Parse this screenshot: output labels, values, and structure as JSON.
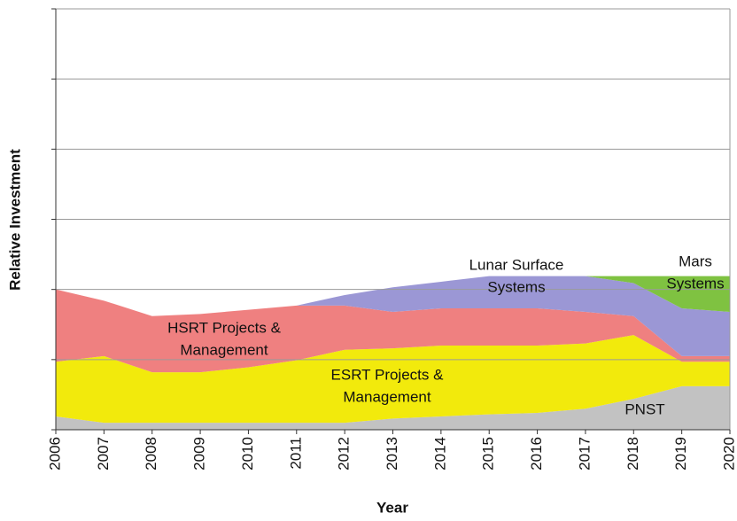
{
  "chart_data": {
    "type": "stacked_area",
    "x_label": "Year",
    "y_label": "Relative Investment",
    "x": [
      2006,
      2007,
      2008,
      2009,
      2010,
      2011,
      2012,
      2013,
      2014,
      2015,
      2016,
      2017,
      2018,
      2019,
      2020
    ],
    "xlim": [
      2006,
      2020
    ],
    "ylim": [
      0,
      6
    ],
    "yticks": [
      0,
      1,
      2,
      3,
      4,
      5,
      6
    ],
    "grid": true,
    "series": [
      {
        "name": "PNST",
        "color": "#c2c2c2",
        "values": [
          0.19,
          0.1,
          0.1,
          0.1,
          0.1,
          0.1,
          0.1,
          0.16,
          0.19,
          0.22,
          0.24,
          0.3,
          0.44,
          0.62,
          0.62
        ]
      },
      {
        "name": "ESRT Projects & Management",
        "color": "#f2ea0c",
        "values": [
          0.78,
          0.95,
          0.72,
          0.72,
          0.79,
          0.89,
          1.04,
          1.0,
          1.01,
          0.98,
          0.96,
          0.93,
          0.91,
          0.35,
          0.35
        ]
      },
      {
        "name": "HSRT Projects & Management",
        "color": "#ef8080",
        "values": [
          1.03,
          0.79,
          0.8,
          0.83,
          0.82,
          0.78,
          0.63,
          0.52,
          0.53,
          0.53,
          0.53,
          0.45,
          0.27,
          0.08,
          0.08
        ]
      },
      {
        "name": "Lunar Surface Systems",
        "color": "#9b97d5",
        "values": [
          0,
          0,
          0,
          0,
          0,
          0,
          0.15,
          0.35,
          0.38,
          0.46,
          0.46,
          0.51,
          0.47,
          0.68,
          0.63
        ]
      },
      {
        "name": "Mars Systems",
        "color": "#7fc241",
        "values": [
          0,
          0,
          0,
          0,
          0,
          0,
          0,
          0,
          0,
          0,
          0,
          0,
          0.1,
          0.46,
          0.51
        ]
      }
    ],
    "annotations": [
      {
        "lines": [
          "PNST"
        ]
      },
      {
        "lines": [
          "ESRT Projects &",
          "Management"
        ]
      },
      {
        "lines": [
          "HSRT Projects &",
          "Management"
        ]
      },
      {
        "lines": [
          "Lunar Surface",
          "Systems"
        ]
      },
      {
        "lines": [
          "Mars",
          "Systems"
        ]
      }
    ]
  }
}
